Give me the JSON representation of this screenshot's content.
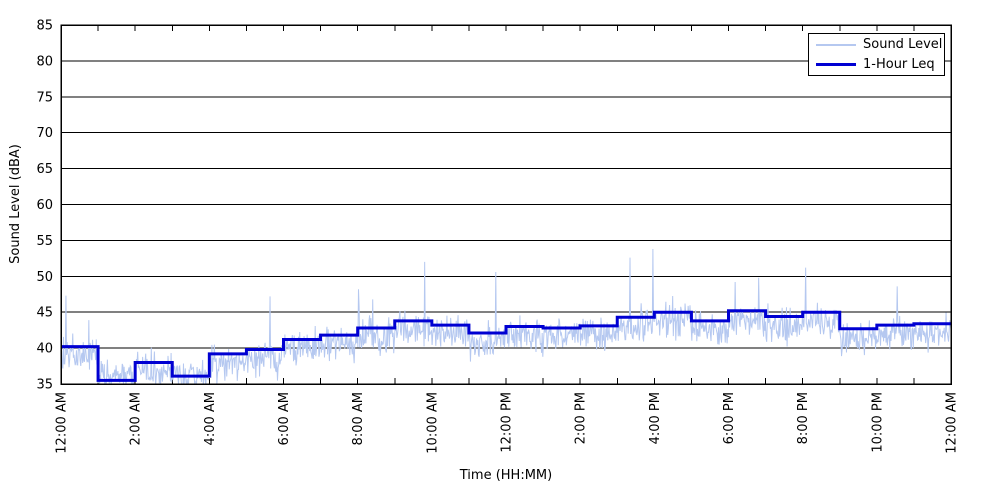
{
  "figure": {
    "background": "#FFFFFF"
  },
  "chart_data": {
    "type": "line",
    "title": "",
    "xlabel": "Time (HH:MM)",
    "ylabel": "Sound Level (dBA)",
    "ylim": [
      35,
      85
    ],
    "y_ticks": [
      35,
      40,
      45,
      50,
      55,
      60,
      65,
      70,
      75,
      80,
      85
    ],
    "x_range_hours": [
      0,
      24
    ],
    "x_minor_tick_every_hours": 1,
    "x_tick_label_hours": [
      0,
      2,
      4,
      6,
      8,
      10,
      12,
      14,
      16,
      18,
      20,
      22,
      24
    ],
    "x_tick_labels": [
      "12:00 AM",
      "2:00 AM",
      "4:00 AM",
      "6:00 AM",
      "8:00 AM",
      "10:00 AM",
      "12:00 PM",
      "2:00 PM",
      "4:00 PM",
      "6:00 PM",
      "8:00 PM",
      "10:00 PM",
      "12:00 AM"
    ],
    "grid": {
      "horizontal": true,
      "vertical": false,
      "color": "#000000"
    },
    "axis_color": "#000000",
    "legend": {
      "position": "top-right",
      "entries": [
        {
          "label": "Sound Level",
          "color": "#B5C8F0",
          "line_width": 2
        },
        {
          "label": "1-Hour Leq",
          "color": "#0000D2",
          "line_width": 3
        }
      ]
    },
    "series": [
      {
        "name": "Sound Level",
        "kind": "minute-samples",
        "color": "#B5C8F0",
        "line_width": 1,
        "synthetic": {
          "seed": 20240607,
          "samples_per_hour": 60,
          "base_offset_db": -1.2,
          "base_floor_db": 36.0,
          "jitter_amplitude_db": 2.4,
          "spike_probability": 0.006,
          "spike_extra_db": [
            3.5,
            8.0
          ],
          "max_db": 53.8,
          "peaks": [
            {
              "minute": 8,
              "dba": 47.3
            },
            {
              "minute": 338,
              "dba": 47.2
            },
            {
              "minute": 481,
              "dba": 48.2
            },
            {
              "minute": 588,
              "dba": 52.0
            },
            {
              "minute": 703,
              "dba": 50.6
            },
            {
              "minute": 920,
              "dba": 52.6
            },
            {
              "minute": 957,
              "dba": 53.8
            },
            {
              "minute": 1128,
              "dba": 49.8
            },
            {
              "minute": 1204,
              "dba": 51.2
            },
            {
              "minute": 1352,
              "dba": 48.6
            }
          ]
        }
      },
      {
        "name": "1-Hour Leq",
        "kind": "hourly-step",
        "color": "#0000D2",
        "line_width": 3,
        "hourly_values_dba": [
          40.2,
          35.5,
          38.0,
          36.1,
          39.2,
          39.8,
          41.2,
          41.8,
          42.8,
          43.8,
          43.2,
          42.1,
          43.0,
          42.8,
          43.1,
          44.3,
          45.0,
          43.8,
          45.2,
          44.4,
          45.0,
          42.7,
          43.2,
          43.4
        ]
      }
    ]
  }
}
